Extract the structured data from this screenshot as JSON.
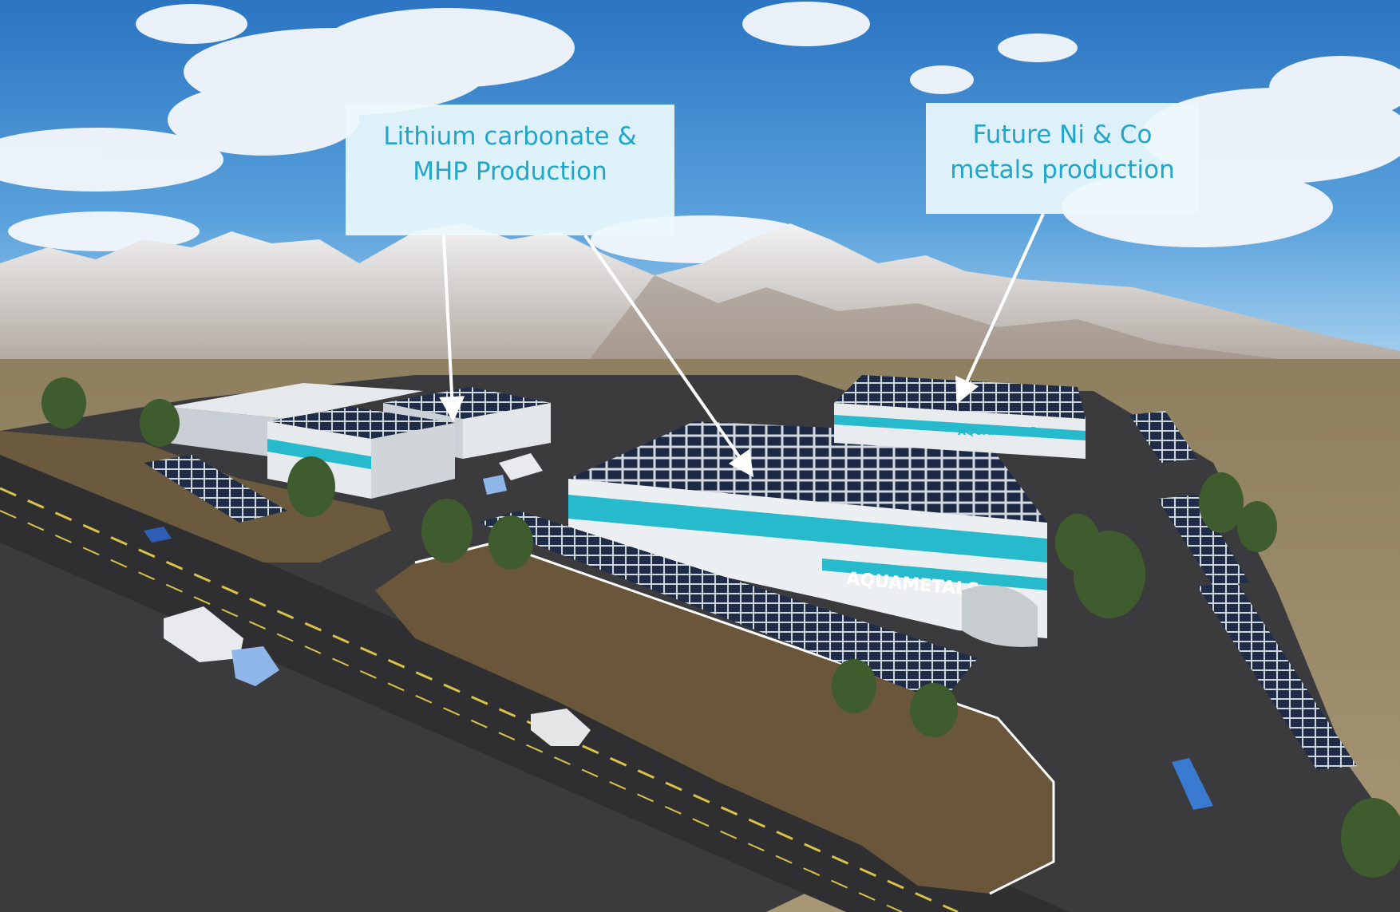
{
  "callouts": [
    {
      "lines": [
        "Lithium carbonate &",
        "MHP Production"
      ]
    },
    {
      "lines": [
        "Future Ni & Co",
        "metals production"
      ]
    }
  ],
  "building_logo": "AQUAMETALS",
  "colors": {
    "sky_top": "#2f7fc8",
    "sky_bottom": "#8fc3ea",
    "desert": "#9c8a66",
    "asphalt": "#3a3a3c",
    "building_wall": "#e9ecee",
    "brand_stripe": "#27b9cc",
    "solar_panel": "#1d2a44",
    "callout_text": "#1fa6c9",
    "arrow": "#ffffff"
  }
}
